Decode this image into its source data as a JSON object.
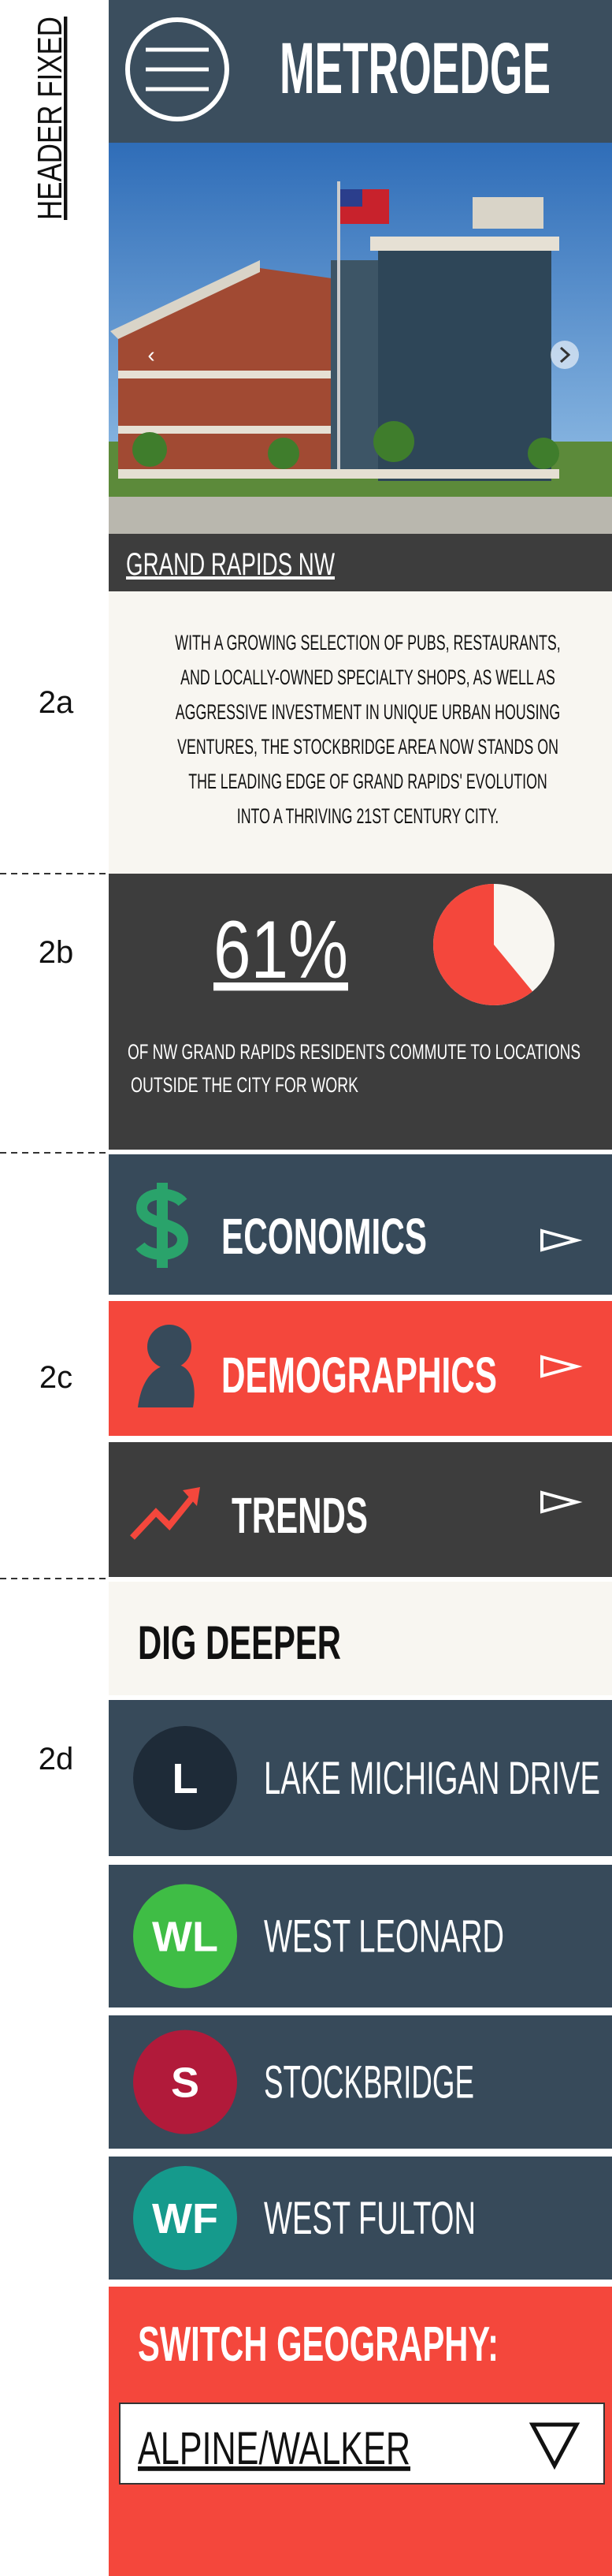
{
  "annotations": {
    "header_fixed": "HEADER FIXED",
    "sections": [
      "2a",
      "2b",
      "2c",
      "2d"
    ]
  },
  "header": {
    "title": "METROEDGE"
  },
  "hero": {
    "caption": "GRAND RAPIDS NW"
  },
  "intro": {
    "lines": [
      "WITH A GROWING SELECTION OF PUBS, RESTAURANTS,",
      "AND LOCALLY-OWNED SPECIALTY SHOPS, AS WELL AS",
      "AGGRESSIVE INVESTMENT IN UNIQUE URBAN HOUSING",
      "VENTURES, THE STOCKBRIDGE AREA NOW STANDS ON",
      "THE LEADING EDGE OF GRAND RAPIDS' EVOLUTION",
      "INTO A THRIVING 21ST CENTURY CITY."
    ]
  },
  "stat": {
    "value": 61,
    "label": "61%",
    "lines": [
      "OF NW GRAND RAPIDS RESIDENTS COMMUTE TO LOCATIONS",
      "OUTSIDE THE CITY FOR WORK"
    ]
  },
  "topics": [
    "ECONOMICS",
    "DEMOGRAPHICS",
    "TRENDS"
  ],
  "dig_deeper": {
    "title": "DIG DEEPER",
    "items": [
      {
        "badge": "L",
        "label": "LAKE MICHIGAN DRIVE"
      },
      {
        "badge": "WL",
        "label": "WEST LEONARD"
      },
      {
        "badge": "S",
        "label": "STOCKBRIDGE"
      },
      {
        "badge": "WF",
        "label": "WEST FULTON"
      }
    ]
  },
  "switch": {
    "title": "SWITCH GEOGRAPHY:",
    "selected": "ALPINE/WALKER"
  }
}
